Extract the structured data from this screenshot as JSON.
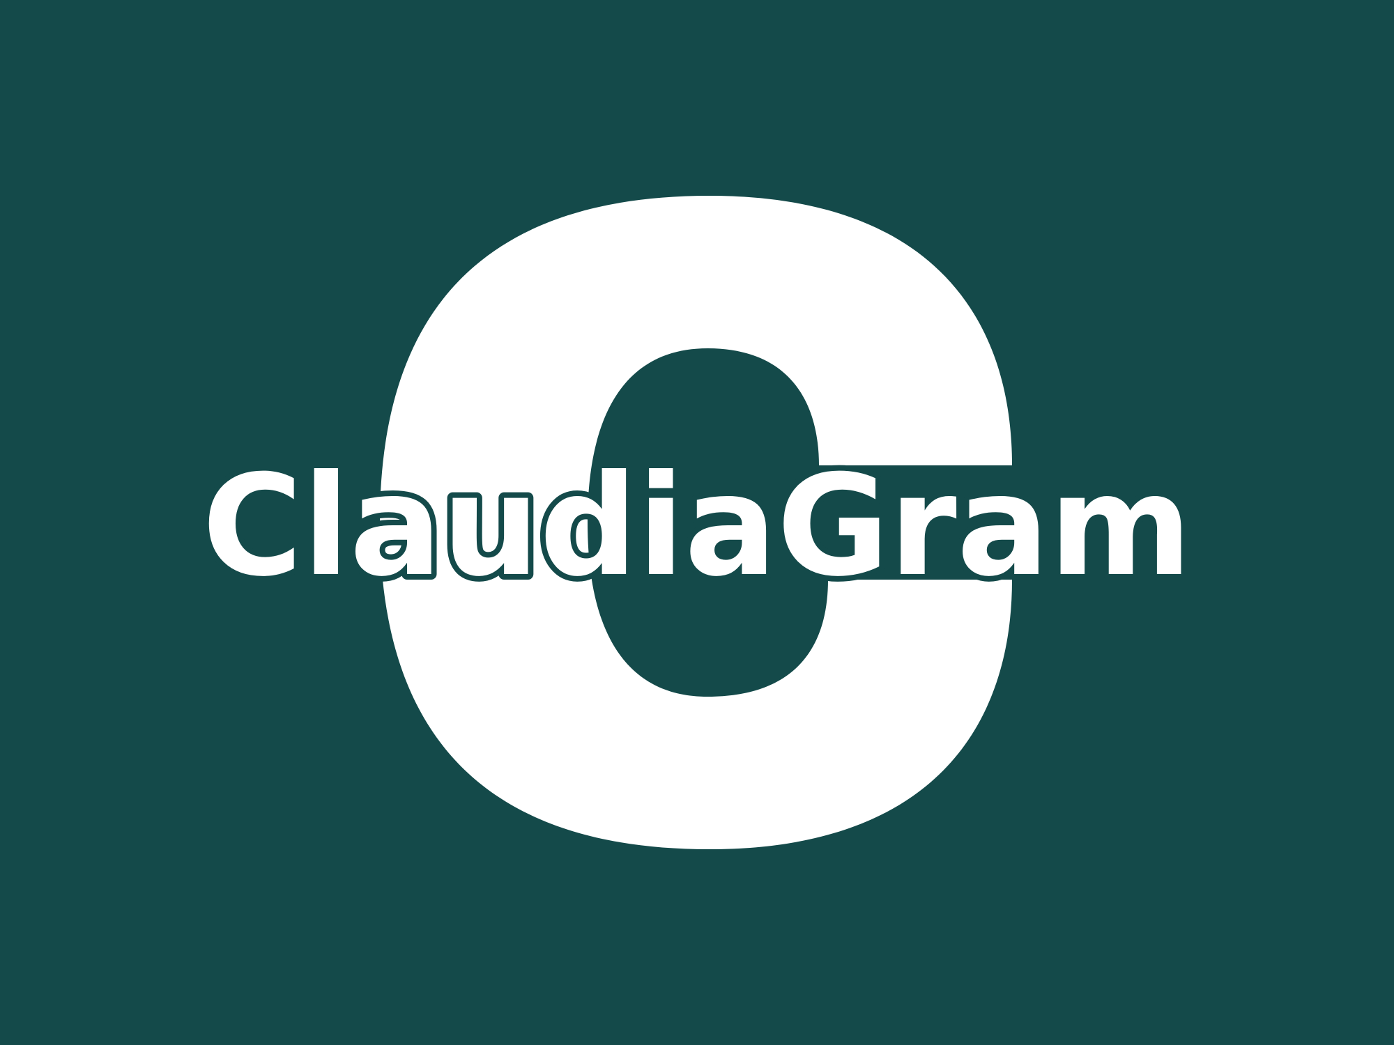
{
  "logo": {
    "monogram": "C",
    "wordmark": "ClaudiaGram",
    "wordmark_parts": {
      "before_outline": "Cla",
      "outlined": "ud",
      "after_outline": "iaGram"
    },
    "colors": {
      "background": "#144a4a",
      "foreground": "#ffffff"
    }
  }
}
